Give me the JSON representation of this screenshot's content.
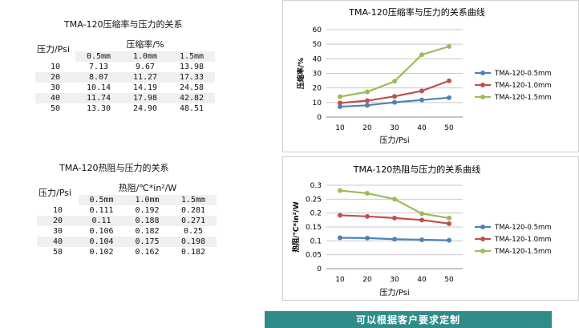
{
  "tables": [
    {
      "title": "TMA-120压缩率与压力的关系",
      "pressure_header": "压力/Psi",
      "group_header": "压缩率/%",
      "columns": [
        "0.5mm",
        "1.0mm",
        "1.5mm"
      ],
      "rows": [
        {
          "p": "10",
          "v": [
            "7.13",
            "9.67",
            "13.98"
          ]
        },
        {
          "p": "20",
          "v": [
            "8.07",
            "11.27",
            "17.33"
          ]
        },
        {
          "p": "30",
          "v": [
            "10.14",
            "14.19",
            "24.58"
          ]
        },
        {
          "p": "40",
          "v": [
            "11.74",
            "17.98",
            "42.82"
          ]
        },
        {
          "p": "50",
          "v": [
            "13.30",
            "24.90",
            "48.51"
          ]
        }
      ]
    },
    {
      "title": "TMA-120热阻与压力的关系",
      "pressure_header": "压力/Psi",
      "group_header": "热阻/℃*in²/W",
      "columns": [
        "0.5mm",
        "1.0mm",
        "1.5mm"
      ],
      "rows": [
        {
          "p": "10",
          "v": [
            "0.111",
            "0.192",
            "0.281"
          ]
        },
        {
          "p": "20",
          "v": [
            "0.11",
            "0.188",
            "0.271"
          ]
        },
        {
          "p": "30",
          "v": [
            "0.106",
            "0.182",
            "0.25"
          ]
        },
        {
          "p": "40",
          "v": [
            "0.104",
            "0.175",
            "0.198"
          ]
        },
        {
          "p": "50",
          "v": [
            "0.102",
            "0.162",
            "0.182"
          ]
        }
      ]
    }
  ],
  "banner_text": "可以根据客户要求定制",
  "chart_data": [
    {
      "type": "line",
      "title": "TMA-120压缩率与压力的关系曲线",
      "xlabel": "压力/Psi",
      "ylabel": "压缩率/%",
      "categories": [
        "10",
        "20",
        "30",
        "40",
        "50"
      ],
      "ylim": [
        0,
        60
      ],
      "yticks": [
        "0",
        "10",
        "20",
        "30",
        "40",
        "50",
        "60"
      ],
      "grid": true,
      "legend": "right",
      "series": [
        {
          "name": "TMA-120-0.5mm",
          "color": "#4f81bd",
          "values": [
            7.13,
            8.07,
            10.14,
            11.74,
            13.3
          ]
        },
        {
          "name": "TMA-120-1.0mm",
          "color": "#c0504d",
          "values": [
            9.67,
            11.27,
            14.19,
            17.98,
            24.9
          ]
        },
        {
          "name": "TMA-120-1.5mm",
          "color": "#9bbb59",
          "values": [
            13.98,
            17.33,
            24.58,
            42.82,
            48.51
          ]
        }
      ]
    },
    {
      "type": "line",
      "title": "TMA-120热阻与压力的关系曲线",
      "xlabel": "压力/Psi",
      "ylabel": "热阻/℃*in²/W",
      "categories": [
        "10",
        "20",
        "30",
        "40",
        "50"
      ],
      "ylim": [
        0,
        0.3
      ],
      "yticks": [
        "0",
        "0.05",
        "0.1",
        "0.15",
        "0.2",
        "0.25",
        "0.3"
      ],
      "grid": true,
      "legend": "right",
      "series": [
        {
          "name": "TMA-120-0.5mm",
          "color": "#4f81bd",
          "values": [
            0.111,
            0.11,
            0.106,
            0.104,
            0.102
          ]
        },
        {
          "name": "TMA-120-1.0mm",
          "color": "#c0504d",
          "values": [
            0.192,
            0.188,
            0.182,
            0.175,
            0.162
          ]
        },
        {
          "name": "TMA-120-1.5mm",
          "color": "#9bbb59",
          "values": [
            0.281,
            0.271,
            0.25,
            0.198,
            0.182
          ]
        }
      ]
    }
  ]
}
